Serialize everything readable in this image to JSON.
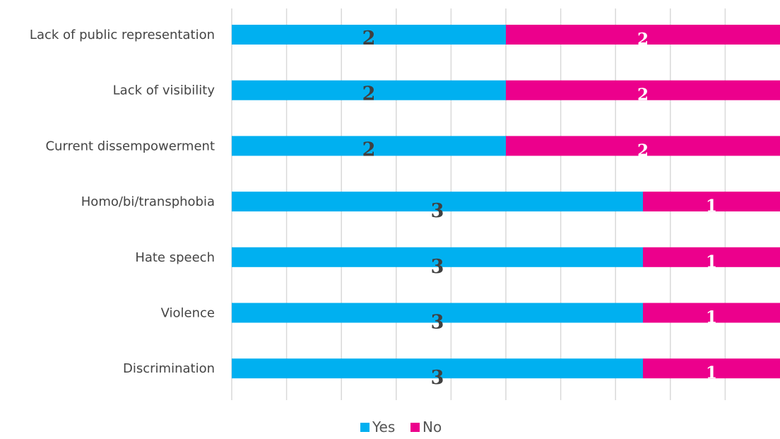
{
  "chart_data": {
    "type": "bar",
    "orientation": "horizontal",
    "stacked": true,
    "categories": [
      "Lack of public representation",
      "Lack of visibility",
      "Current dissempowerment",
      "Homo/bi/transphobia",
      "Hate speech",
      "Violence",
      "Discrimination"
    ],
    "series": [
      {
        "name": "Yes",
        "color": "#00b0f0",
        "values": [
          2,
          2,
          2,
          3,
          3,
          3,
          3
        ]
      },
      {
        "name": "No",
        "color": "#ec008c",
        "values": [
          2,
          2,
          2,
          1,
          1,
          1,
          1
        ]
      }
    ],
    "title": "",
    "xlabel": "",
    "ylabel": "",
    "xlim": [
      0,
      4
    ],
    "grid": true,
    "legend": "bottom"
  }
}
